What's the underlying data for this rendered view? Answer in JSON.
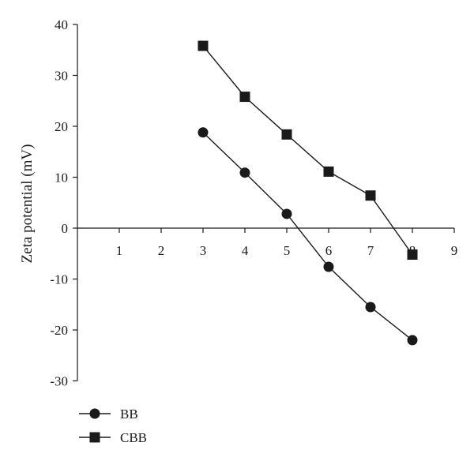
{
  "chart_data": {
    "type": "line",
    "title": "",
    "xlabel": "",
    "ylabel": "Zeta potential (mV)",
    "xlim": [
      0,
      9
    ],
    "ylim": [
      -30,
      40
    ],
    "xticks": [
      1,
      2,
      3,
      4,
      5,
      6,
      7,
      8,
      9
    ],
    "yticks": [
      40,
      30,
      20,
      10,
      0,
      -10,
      -20,
      -30
    ],
    "grid": false,
    "legend_position": "bottom-left",
    "series": [
      {
        "name": "BB",
        "marker": "circle",
        "color": "#1a1a1a",
        "x": [
          3,
          4,
          5,
          6,
          7,
          8
        ],
        "values": [
          18.8,
          10.9,
          2.8,
          -7.6,
          -15.5,
          -22.0
        ]
      },
      {
        "name": "CBB",
        "marker": "square",
        "color": "#1a1a1a",
        "x": [
          3,
          4,
          5,
          6,
          7,
          8
        ],
        "values": [
          35.8,
          25.8,
          18.4,
          11.1,
          6.4,
          -5.2
        ]
      }
    ]
  }
}
